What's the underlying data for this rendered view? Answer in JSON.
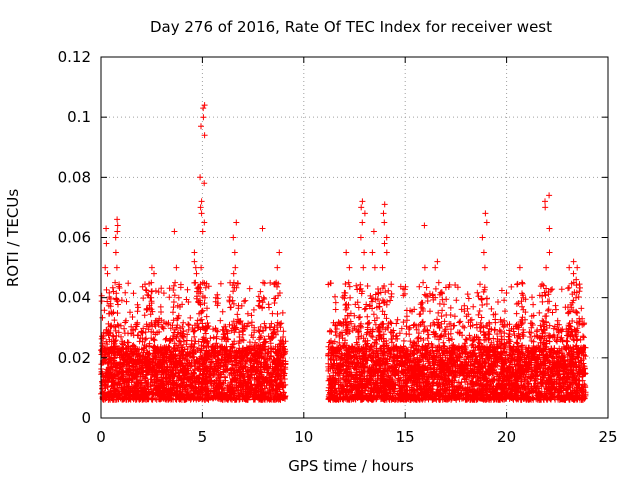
{
  "chart_data": {
    "type": "scatter",
    "title": "Day 276 of 2016, Rate Of TEC Index for receiver west",
    "xlabel": "GPS time / hours",
    "ylabel": "ROTI / TECUs",
    "xlim": [
      0,
      25
    ],
    "ylim": [
      0,
      0.12
    ],
    "xticks": [
      0,
      5,
      10,
      15,
      20,
      25
    ],
    "yticks": [
      0,
      0.02,
      0.04,
      0.06,
      0.08,
      0.1,
      0.12
    ],
    "xtick_labels": [
      "0",
      "5",
      "10",
      "15",
      "20",
      "25"
    ],
    "ytick_labels": [
      "0",
      "0.02",
      "0.04",
      "0.06",
      "0.08",
      "0.1",
      "0.12"
    ],
    "grid": true,
    "marker": "+",
    "series_color": "#ff0000",
    "data_gap": [
      9.1,
      11.2
    ],
    "segments": [
      {
        "x_start": 0.0,
        "x_end": 9.1,
        "baseline": [
          0.005,
          0.03
        ]
      },
      {
        "x_start": 11.2,
        "x_end": 23.9,
        "baseline": [
          0.005,
          0.03
        ]
      }
    ],
    "bursts": [
      {
        "x": 5.0,
        "values": [
          0.104,
          0.103,
          0.1,
          0.097,
          0.094,
          0.08,
          0.078,
          0.072,
          0.07,
          0.068,
          0.065,
          0.062,
          0.05,
          0.045,
          0.04,
          0.035
        ]
      },
      {
        "x": 0.7,
        "values": [
          0.066,
          0.064,
          0.062,
          0.06,
          0.055,
          0.05,
          0.045
        ]
      },
      {
        "x": 0.3,
        "values": [
          0.063,
          0.058,
          0.05,
          0.048
        ]
      },
      {
        "x": 4.7,
        "values": [
          0.055,
          0.052,
          0.05,
          0.048,
          0.045,
          0.042
        ]
      },
      {
        "x": 3.7,
        "values": [
          0.062,
          0.05,
          0.045
        ]
      },
      {
        "x": 6.6,
        "values": [
          0.065,
          0.06,
          0.055,
          0.05,
          0.048,
          0.045
        ]
      },
      {
        "x": 7.9,
        "values": [
          0.063,
          0.045,
          0.04
        ]
      },
      {
        "x": 8.7,
        "values": [
          0.055,
          0.05,
          0.045
        ]
      },
      {
        "x": 2.5,
        "values": [
          0.05,
          0.048,
          0.045,
          0.04
        ]
      },
      {
        "x": 12.9,
        "values": [
          0.072,
          0.07,
          0.068,
          0.065,
          0.06,
          0.055,
          0.05
        ]
      },
      {
        "x": 12.2,
        "values": [
          0.055,
          0.05,
          0.045,
          0.04
        ]
      },
      {
        "x": 14.0,
        "values": [
          0.071,
          0.068,
          0.065,
          0.06,
          0.058,
          0.055,
          0.05
        ]
      },
      {
        "x": 13.5,
        "values": [
          0.062,
          0.055,
          0.05
        ]
      },
      {
        "x": 15.9,
        "values": [
          0.064,
          0.05,
          0.045
        ]
      },
      {
        "x": 16.6,
        "values": [
          0.052,
          0.05,
          0.045
        ]
      },
      {
        "x": 18.9,
        "values": [
          0.068,
          0.065,
          0.06,
          0.055,
          0.05
        ]
      },
      {
        "x": 22.0,
        "values": [
          0.074,
          0.072,
          0.07,
          0.063,
          0.055,
          0.05
        ]
      },
      {
        "x": 23.2,
        "values": [
          0.052,
          0.05,
          0.048,
          0.045
        ]
      },
      {
        "x": 23.4,
        "values": [
          0.05,
          0.046,
          0.04
        ]
      },
      {
        "x": 20.7,
        "values": [
          0.05,
          0.045,
          0.04
        ]
      }
    ]
  }
}
